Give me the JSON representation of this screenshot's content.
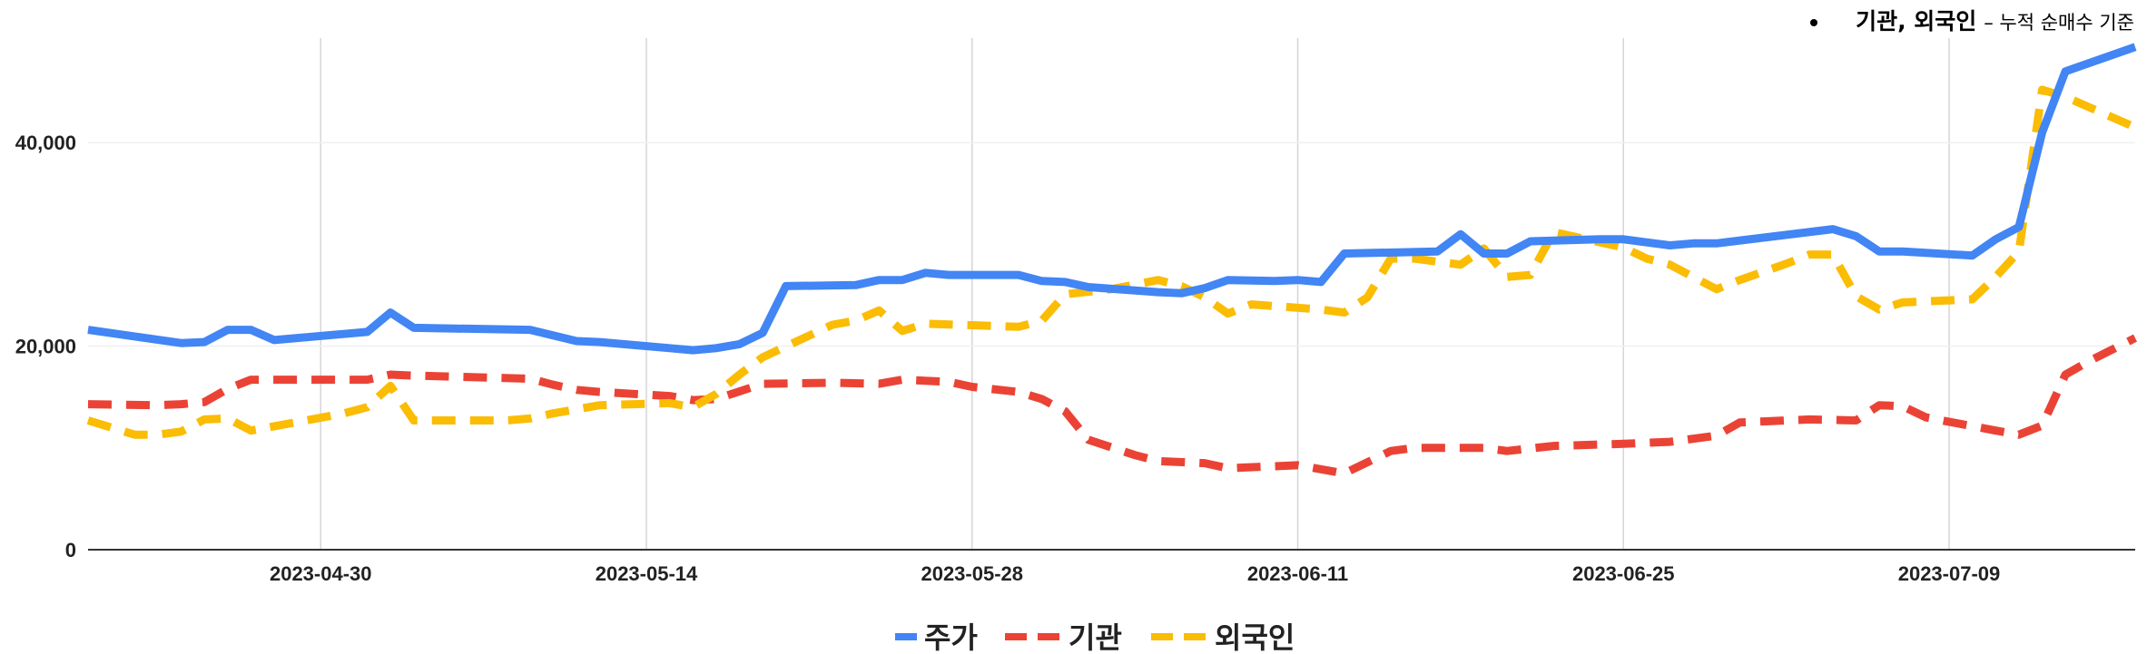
{
  "note": {
    "bold": "기관, 외국인",
    "rest": "– 누적 순매수 기준"
  },
  "chart_data": {
    "type": "line",
    "title": "",
    "xlabel": "",
    "ylabel": "",
    "ylim": [
      0,
      50000
    ],
    "yticks": [
      0,
      20000,
      40000
    ],
    "ytick_labels": [
      "0",
      "20,000",
      "40,000"
    ],
    "xlim": [
      "2023-04-20",
      "2023-07-17"
    ],
    "xticks": [
      "2023-04-30",
      "2023-05-14",
      "2023-05-28",
      "2023-06-11",
      "2023-06-25",
      "2023-07-09"
    ],
    "grid": true,
    "legend_position": "bottom",
    "series": [
      {
        "name": "주가",
        "color": "#4285f4",
        "style": "solid",
        "points": [
          [
            "2023-04-20",
            21600
          ],
          [
            "2023-04-24",
            20300
          ],
          [
            "2023-04-25",
            20400
          ],
          [
            "2023-04-26",
            21600
          ],
          [
            "2023-04-27",
            21600
          ],
          [
            "2023-04-28",
            20600
          ],
          [
            "2023-05-02",
            21400
          ],
          [
            "2023-05-03",
            23300
          ],
          [
            "2023-05-04",
            21800
          ],
          [
            "2023-05-09",
            21600
          ],
          [
            "2023-05-11",
            20500
          ],
          [
            "2023-05-12",
            20400
          ],
          [
            "2023-05-15",
            19800
          ],
          [
            "2023-05-16",
            19600
          ],
          [
            "2023-05-17",
            19800
          ],
          [
            "2023-05-18",
            20200
          ],
          [
            "2023-05-19",
            21300
          ],
          [
            "2023-05-20",
            25900
          ],
          [
            "2023-05-23",
            26000
          ],
          [
            "2023-05-24",
            26500
          ],
          [
            "2023-05-25",
            26500
          ],
          [
            "2023-05-26",
            27200
          ],
          [
            "2023-05-27",
            27000
          ],
          [
            "2023-05-30",
            27000
          ],
          [
            "2023-05-31",
            26400
          ],
          [
            "2023-06-01",
            26300
          ],
          [
            "2023-06-02",
            25800
          ],
          [
            "2023-06-05",
            25300
          ],
          [
            "2023-06-06",
            25200
          ],
          [
            "2023-06-07",
            25700
          ],
          [
            "2023-06-08",
            26500
          ],
          [
            "2023-06-10",
            26400
          ],
          [
            "2023-06-11",
            26500
          ],
          [
            "2023-06-12",
            26300
          ],
          [
            "2023-06-13",
            29100
          ],
          [
            "2023-06-17",
            29300
          ],
          [
            "2023-06-18",
            31000
          ],
          [
            "2023-06-19",
            29100
          ],
          [
            "2023-06-20",
            29100
          ],
          [
            "2023-06-21",
            30300
          ],
          [
            "2023-06-24",
            30500
          ],
          [
            "2023-06-25",
            30500
          ],
          [
            "2023-06-26",
            30200
          ],
          [
            "2023-06-27",
            29900
          ],
          [
            "2023-06-28",
            30100
          ],
          [
            "2023-06-29",
            30100
          ],
          [
            "2023-07-04",
            31500
          ],
          [
            "2023-07-05",
            30800
          ],
          [
            "2023-07-06",
            29300
          ],
          [
            "2023-07-07",
            29300
          ],
          [
            "2023-07-10",
            28900
          ],
          [
            "2023-07-11",
            30500
          ],
          [
            "2023-07-12",
            31700
          ],
          [
            "2023-07-13",
            41000
          ],
          [
            "2023-07-14",
            47000
          ],
          [
            "2023-07-17",
            49400
          ]
        ]
      },
      {
        "name": "기관",
        "color": "#ea4335",
        "style": "dashed",
        "points": [
          [
            "2023-04-20",
            14300
          ],
          [
            "2023-04-23",
            14200
          ],
          [
            "2023-04-24",
            14300
          ],
          [
            "2023-04-25",
            14500
          ],
          [
            "2023-04-26",
            15800
          ],
          [
            "2023-04-27",
            16700
          ],
          [
            "2023-04-28",
            16700
          ],
          [
            "2023-05-02",
            16700
          ],
          [
            "2023-05-03",
            17200
          ],
          [
            "2023-05-04",
            17100
          ],
          [
            "2023-05-09",
            16800
          ],
          [
            "2023-05-10",
            16200
          ],
          [
            "2023-05-11",
            15700
          ],
          [
            "2023-05-12",
            15500
          ],
          [
            "2023-05-15",
            15100
          ],
          [
            "2023-05-16",
            14700
          ],
          [
            "2023-05-17",
            14800
          ],
          [
            "2023-05-19",
            16300
          ],
          [
            "2023-05-22",
            16400
          ],
          [
            "2023-05-24",
            16300
          ],
          [
            "2023-05-25",
            16700
          ],
          [
            "2023-05-27",
            16500
          ],
          [
            "2023-05-28",
            16000
          ],
          [
            "2023-05-30",
            15500
          ],
          [
            "2023-05-31",
            14800
          ],
          [
            "2023-06-01",
            13600
          ],
          [
            "2023-06-02",
            10800
          ],
          [
            "2023-06-04",
            9300
          ],
          [
            "2023-06-05",
            8700
          ],
          [
            "2023-06-07",
            8500
          ],
          [
            "2023-06-08",
            8000
          ],
          [
            "2023-06-10",
            8200
          ],
          [
            "2023-06-11",
            8300
          ],
          [
            "2023-06-13",
            7500
          ],
          [
            "2023-06-15",
            9700
          ],
          [
            "2023-06-16",
            10000
          ],
          [
            "2023-06-19",
            10000
          ],
          [
            "2023-06-20",
            9700
          ],
          [
            "2023-06-22",
            10200
          ],
          [
            "2023-06-25",
            10400
          ],
          [
            "2023-06-27",
            10600
          ],
          [
            "2023-06-29",
            11200
          ],
          [
            "2023-06-30",
            12500
          ],
          [
            "2023-07-03",
            12800
          ],
          [
            "2023-07-05",
            12700
          ],
          [
            "2023-07-06",
            14200
          ],
          [
            "2023-07-07",
            14100
          ],
          [
            "2023-07-08",
            13000
          ],
          [
            "2023-07-11",
            11700
          ],
          [
            "2023-07-12",
            11300
          ],
          [
            "2023-07-13",
            12200
          ],
          [
            "2023-07-14",
            17200
          ],
          [
            "2023-07-15",
            18500
          ],
          [
            "2023-07-17",
            20800
          ]
        ]
      },
      {
        "name": "외국인",
        "color": "#fbbc04",
        "style": "dashed",
        "points": [
          [
            "2023-04-20",
            12700
          ],
          [
            "2023-04-22",
            11300
          ],
          [
            "2023-04-23",
            11300
          ],
          [
            "2023-04-24",
            11600
          ],
          [
            "2023-04-25",
            12800
          ],
          [
            "2023-04-26",
            12900
          ],
          [
            "2023-04-27",
            11700
          ],
          [
            "2023-05-01",
            13400
          ],
          [
            "2023-05-02",
            14000
          ],
          [
            "2023-05-03",
            16100
          ],
          [
            "2023-05-04",
            12700
          ],
          [
            "2023-05-08",
            12700
          ],
          [
            "2023-05-09",
            12900
          ],
          [
            "2023-05-10",
            13400
          ],
          [
            "2023-05-11",
            13800
          ],
          [
            "2023-05-12",
            14200
          ],
          [
            "2023-05-15",
            14400
          ],
          [
            "2023-05-16",
            14000
          ],
          [
            "2023-05-17",
            15300
          ],
          [
            "2023-05-18",
            17200
          ],
          [
            "2023-05-19",
            18900
          ],
          [
            "2023-05-22",
            22100
          ],
          [
            "2023-05-23",
            22500
          ],
          [
            "2023-05-24",
            23500
          ],
          [
            "2023-05-25",
            21500
          ],
          [
            "2023-05-26",
            22200
          ],
          [
            "2023-05-30",
            21900
          ],
          [
            "2023-05-31",
            22500
          ],
          [
            "2023-06-01",
            25100
          ],
          [
            "2023-06-03",
            25600
          ],
          [
            "2023-06-05",
            26500
          ],
          [
            "2023-06-06",
            25900
          ],
          [
            "2023-06-07",
            24800
          ],
          [
            "2023-06-08",
            23200
          ],
          [
            "2023-06-09",
            24100
          ],
          [
            "2023-06-12",
            23600
          ],
          [
            "2023-06-13",
            23300
          ],
          [
            "2023-06-14",
            24800
          ],
          [
            "2023-06-15",
            28600
          ],
          [
            "2023-06-16",
            28600
          ],
          [
            "2023-06-18",
            28000
          ],
          [
            "2023-06-19",
            29600
          ],
          [
            "2023-06-20",
            26800
          ],
          [
            "2023-06-21",
            27000
          ],
          [
            "2023-06-22",
            31200
          ],
          [
            "2023-06-25",
            29700
          ],
          [
            "2023-06-26",
            28600
          ],
          [
            "2023-06-27",
            28000
          ],
          [
            "2023-06-28",
            26800
          ],
          [
            "2023-06-29",
            25600
          ],
          [
            "2023-06-30",
            26500
          ],
          [
            "2023-07-02",
            28100
          ],
          [
            "2023-07-03",
            29000
          ],
          [
            "2023-07-04",
            29000
          ],
          [
            "2023-07-05",
            24900
          ],
          [
            "2023-07-06",
            23600
          ],
          [
            "2023-07-07",
            24300
          ],
          [
            "2023-07-10",
            24600
          ],
          [
            "2023-07-11",
            26800
          ],
          [
            "2023-07-12",
            29300
          ],
          [
            "2023-07-13",
            45200
          ],
          [
            "2023-07-14",
            44500
          ],
          [
            "2023-07-17",
            41500
          ]
        ]
      }
    ]
  }
}
